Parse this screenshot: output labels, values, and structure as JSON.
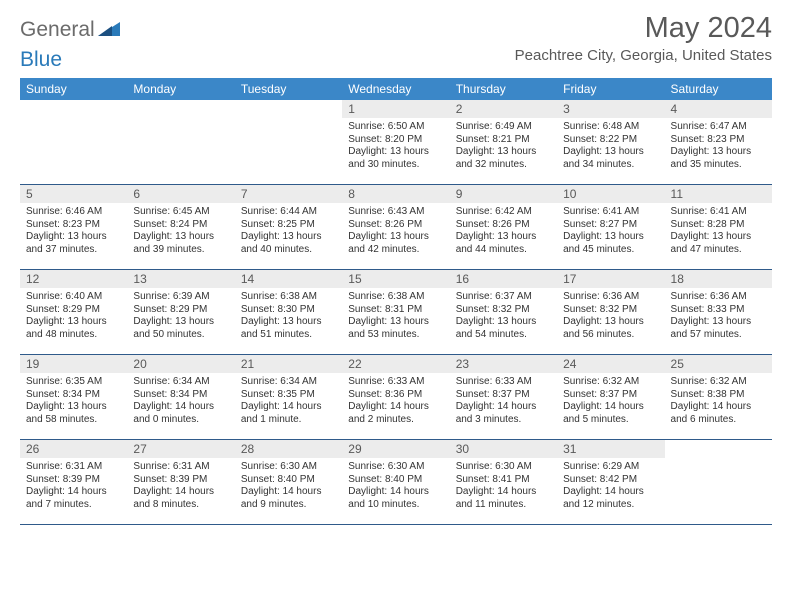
{
  "brand": {
    "text_gray": "General",
    "text_blue": "Blue"
  },
  "title": "May 2024",
  "location": "Peachtree City, Georgia, United States",
  "colors": {
    "header_bg": "#3b87c8",
    "header_text": "#ffffff",
    "daynum_bg": "#ececec",
    "text_gray": "#595959",
    "divider": "#2f5a8a"
  },
  "days_of_week": [
    "Sunday",
    "Monday",
    "Tuesday",
    "Wednesday",
    "Thursday",
    "Friday",
    "Saturday"
  ],
  "weeks": [
    [
      {
        "blank": true
      },
      {
        "blank": true
      },
      {
        "blank": true
      },
      {
        "n": "1",
        "sunrise": "6:50 AM",
        "sunset": "8:20 PM",
        "daylight": "13 hours and 30 minutes."
      },
      {
        "n": "2",
        "sunrise": "6:49 AM",
        "sunset": "8:21 PM",
        "daylight": "13 hours and 32 minutes."
      },
      {
        "n": "3",
        "sunrise": "6:48 AM",
        "sunset": "8:22 PM",
        "daylight": "13 hours and 34 minutes."
      },
      {
        "n": "4",
        "sunrise": "6:47 AM",
        "sunset": "8:23 PM",
        "daylight": "13 hours and 35 minutes."
      }
    ],
    [
      {
        "n": "5",
        "sunrise": "6:46 AM",
        "sunset": "8:23 PM",
        "daylight": "13 hours and 37 minutes."
      },
      {
        "n": "6",
        "sunrise": "6:45 AM",
        "sunset": "8:24 PM",
        "daylight": "13 hours and 39 minutes."
      },
      {
        "n": "7",
        "sunrise": "6:44 AM",
        "sunset": "8:25 PM",
        "daylight": "13 hours and 40 minutes."
      },
      {
        "n": "8",
        "sunrise": "6:43 AM",
        "sunset": "8:26 PM",
        "daylight": "13 hours and 42 minutes."
      },
      {
        "n": "9",
        "sunrise": "6:42 AM",
        "sunset": "8:26 PM",
        "daylight": "13 hours and 44 minutes."
      },
      {
        "n": "10",
        "sunrise": "6:41 AM",
        "sunset": "8:27 PM",
        "daylight": "13 hours and 45 minutes."
      },
      {
        "n": "11",
        "sunrise": "6:41 AM",
        "sunset": "8:28 PM",
        "daylight": "13 hours and 47 minutes."
      }
    ],
    [
      {
        "n": "12",
        "sunrise": "6:40 AM",
        "sunset": "8:29 PM",
        "daylight": "13 hours and 48 minutes."
      },
      {
        "n": "13",
        "sunrise": "6:39 AM",
        "sunset": "8:29 PM",
        "daylight": "13 hours and 50 minutes."
      },
      {
        "n": "14",
        "sunrise": "6:38 AM",
        "sunset": "8:30 PM",
        "daylight": "13 hours and 51 minutes."
      },
      {
        "n": "15",
        "sunrise": "6:38 AM",
        "sunset": "8:31 PM",
        "daylight": "13 hours and 53 minutes."
      },
      {
        "n": "16",
        "sunrise": "6:37 AM",
        "sunset": "8:32 PM",
        "daylight": "13 hours and 54 minutes."
      },
      {
        "n": "17",
        "sunrise": "6:36 AM",
        "sunset": "8:32 PM",
        "daylight": "13 hours and 56 minutes."
      },
      {
        "n": "18",
        "sunrise": "6:36 AM",
        "sunset": "8:33 PM",
        "daylight": "13 hours and 57 minutes."
      }
    ],
    [
      {
        "n": "19",
        "sunrise": "6:35 AM",
        "sunset": "8:34 PM",
        "daylight": "13 hours and 58 minutes."
      },
      {
        "n": "20",
        "sunrise": "6:34 AM",
        "sunset": "8:34 PM",
        "daylight": "14 hours and 0 minutes."
      },
      {
        "n": "21",
        "sunrise": "6:34 AM",
        "sunset": "8:35 PM",
        "daylight": "14 hours and 1 minute."
      },
      {
        "n": "22",
        "sunrise": "6:33 AM",
        "sunset": "8:36 PM",
        "daylight": "14 hours and 2 minutes."
      },
      {
        "n": "23",
        "sunrise": "6:33 AM",
        "sunset": "8:37 PM",
        "daylight": "14 hours and 3 minutes."
      },
      {
        "n": "24",
        "sunrise": "6:32 AM",
        "sunset": "8:37 PM",
        "daylight": "14 hours and 5 minutes."
      },
      {
        "n": "25",
        "sunrise": "6:32 AM",
        "sunset": "8:38 PM",
        "daylight": "14 hours and 6 minutes."
      }
    ],
    [
      {
        "n": "26",
        "sunrise": "6:31 AM",
        "sunset": "8:39 PM",
        "daylight": "14 hours and 7 minutes."
      },
      {
        "n": "27",
        "sunrise": "6:31 AM",
        "sunset": "8:39 PM",
        "daylight": "14 hours and 8 minutes."
      },
      {
        "n": "28",
        "sunrise": "6:30 AM",
        "sunset": "8:40 PM",
        "daylight": "14 hours and 9 minutes."
      },
      {
        "n": "29",
        "sunrise": "6:30 AM",
        "sunset": "8:40 PM",
        "daylight": "14 hours and 10 minutes."
      },
      {
        "n": "30",
        "sunrise": "6:30 AM",
        "sunset": "8:41 PM",
        "daylight": "14 hours and 11 minutes."
      },
      {
        "n": "31",
        "sunrise": "6:29 AM",
        "sunset": "8:42 PM",
        "daylight": "14 hours and 12 minutes."
      },
      {
        "blank": true
      }
    ]
  ],
  "labels": {
    "sunrise": "Sunrise:",
    "sunset": "Sunset:",
    "daylight": "Daylight:"
  }
}
